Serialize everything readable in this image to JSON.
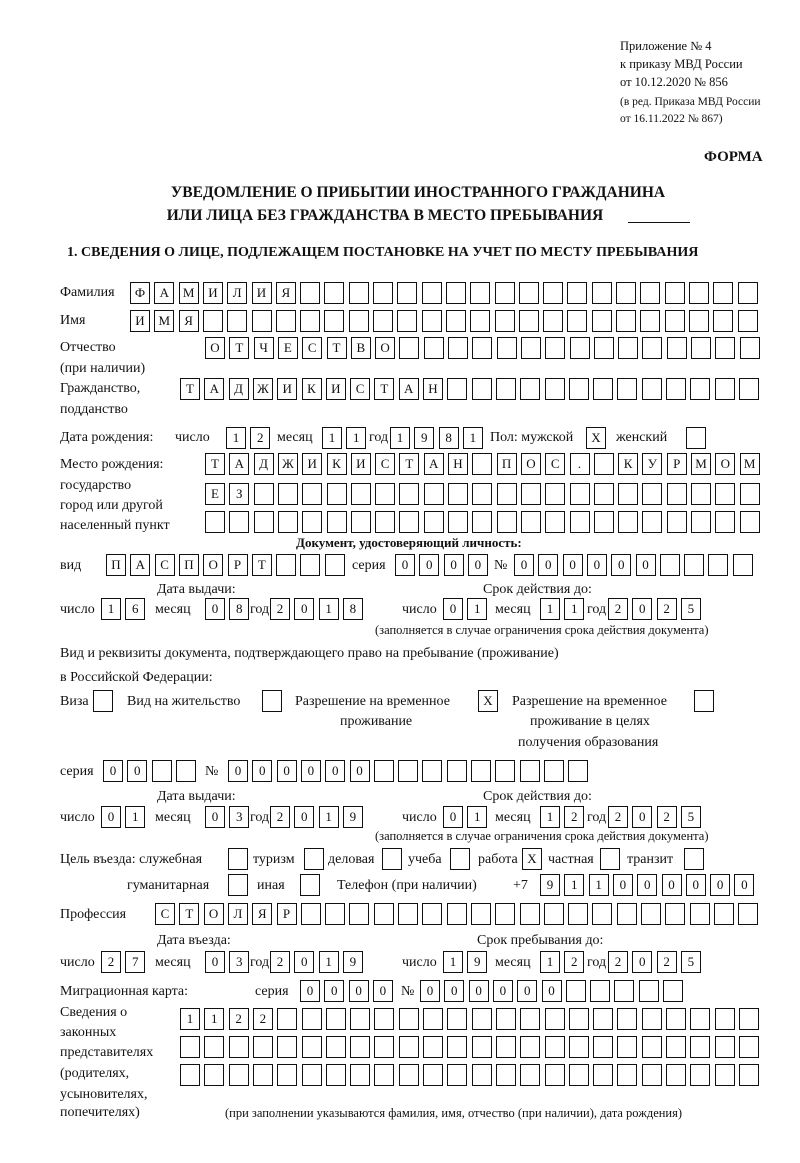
{
  "header": {
    "line1": "Приложение № 4",
    "line2": "к приказу МВД России",
    "line3": "от 10.12.2020 № 856",
    "line4": "(в ред. Приказа МВД России",
    "line5": "от 16.11.2022 № 867)",
    "forma": "ФОРМА",
    "title1": "УВЕДОМЛЕНИЕ О ПРИБЫТИИ ИНОСТРАННОГО ГРАЖДАНИНА",
    "title2": "ИЛИ ЛИЦА БЕЗ ГРАЖДАНСТВА В МЕСТО ПРЕБЫВАНИЯ",
    "section1": "1. СВЕДЕНИЯ О ЛИЦЕ, ПОДЛЕЖАЩЕМ ПОСТАНОВКЕ НА УЧЕТ ПО МЕСТУ ПРЕБЫВАНИЯ"
  },
  "labels": {
    "surname": "Фамилия",
    "name": "Имя",
    "patronymic1": "Отчество",
    "patronymic2": "(при наличии)",
    "citizenship1": "Гражданство,",
    "citizenship2": "подданство",
    "birth_date": "Дата рождения:",
    "day": "число",
    "month": "месяц",
    "year": "год",
    "sex_male": "Пол: мужской",
    "sex_female": "женский",
    "birthplace1": "Место рождения:",
    "birthplace2": "государство",
    "birthplace3": "город или другой",
    "birthplace4": "населенный пункт",
    "id_doc": "Документ, удостоверяющий личность:",
    "kind": "вид",
    "series": "серия",
    "number": "№",
    "issue_date": "Дата выдачи:",
    "valid_until": "Срок действия до:",
    "valid_note": "(заполняется в случае ограничения срока действия документа)",
    "right_doc1": "Вид и реквизиты документа, подтверждающего право на пребывание (проживание)",
    "right_doc2": "в Российской Федерации:",
    "visa": "Виза",
    "residence": "Вид на жительство",
    "temp_res1": "Разрешение на временное",
    "temp_res2": "проживание",
    "temp_edu1": "Разрешение на временное",
    "temp_edu2": "проживание в целях",
    "temp_edu3": "получения образования",
    "purpose": "Цель въезда: служебная",
    "tourism": "туризм",
    "business": "деловая",
    "study": "учеба",
    "work": "работа",
    "private": "частная",
    "transit": "транзит",
    "humanitarian": "гуманитарная",
    "other": "иная",
    "phone": "Телефон (при наличии)",
    "phone_prefix": "+7",
    "profession": "Профессия",
    "entry_date": "Дата въезда:",
    "stay_until": "Срок пребывания до:",
    "migration_card": "Миграционная карта:",
    "reps1": "Сведения о",
    "reps2": "законных",
    "reps3": "представителях",
    "reps4": "(родителях,",
    "reps5": "усыновителях,",
    "reps6": "попечителях)",
    "reps_note": "(при заполнении указываются фамилия, имя, отчество (при наличии), дата рождения)"
  },
  "values": {
    "surname": "ФАМИЛИЯ",
    "name": "ИМЯ",
    "patronymic": "ОТЧЕСТВО",
    "citizenship": "ТАДЖИКИСТАН",
    "birth_day": "12",
    "birth_month": "11",
    "birth_year": "1981",
    "sex_male": "X",
    "sex_female": "",
    "birthplace1": "ТАДЖИКИСТАН ПОС. КУРМОМБ",
    "birthplace2": "ЕЗ",
    "birthplace3": "",
    "id_kind": "ПАСПОРТ",
    "id_series": "0000",
    "id_number": "000000",
    "id_issue_day": "16",
    "id_issue_month": "08",
    "id_issue_year": "2018",
    "id_valid_day": "01",
    "id_valid_month": "11",
    "id_valid_year": "2025",
    "visa": "",
    "residence": "",
    "temp_res": "X",
    "temp_edu": "",
    "rd_series": "00",
    "rd_number": "000000",
    "rd_issue_day": "01",
    "rd_issue_month": "03",
    "rd_issue_year": "2019",
    "rd_valid_day": "01",
    "rd_valid_month": "12",
    "rd_valid_year": "2025",
    "p_service": "",
    "p_tourism": "",
    "p_business": "",
    "p_study": "",
    "p_work": "X",
    "p_private": "",
    "p_transit": "",
    "p_humanitarian": "",
    "p_other": "",
    "phone": "911000000",
    "profession": "СТОЛЯР",
    "entry_day": "27",
    "entry_month": "03",
    "entry_year": "2019",
    "stay_day": "19",
    "stay_month": "12",
    "stay_year": "2025",
    "mc_series": "0000",
    "mc_number": "000000",
    "reps1": "1122",
    "reps2": "",
    "reps3": ""
  }
}
